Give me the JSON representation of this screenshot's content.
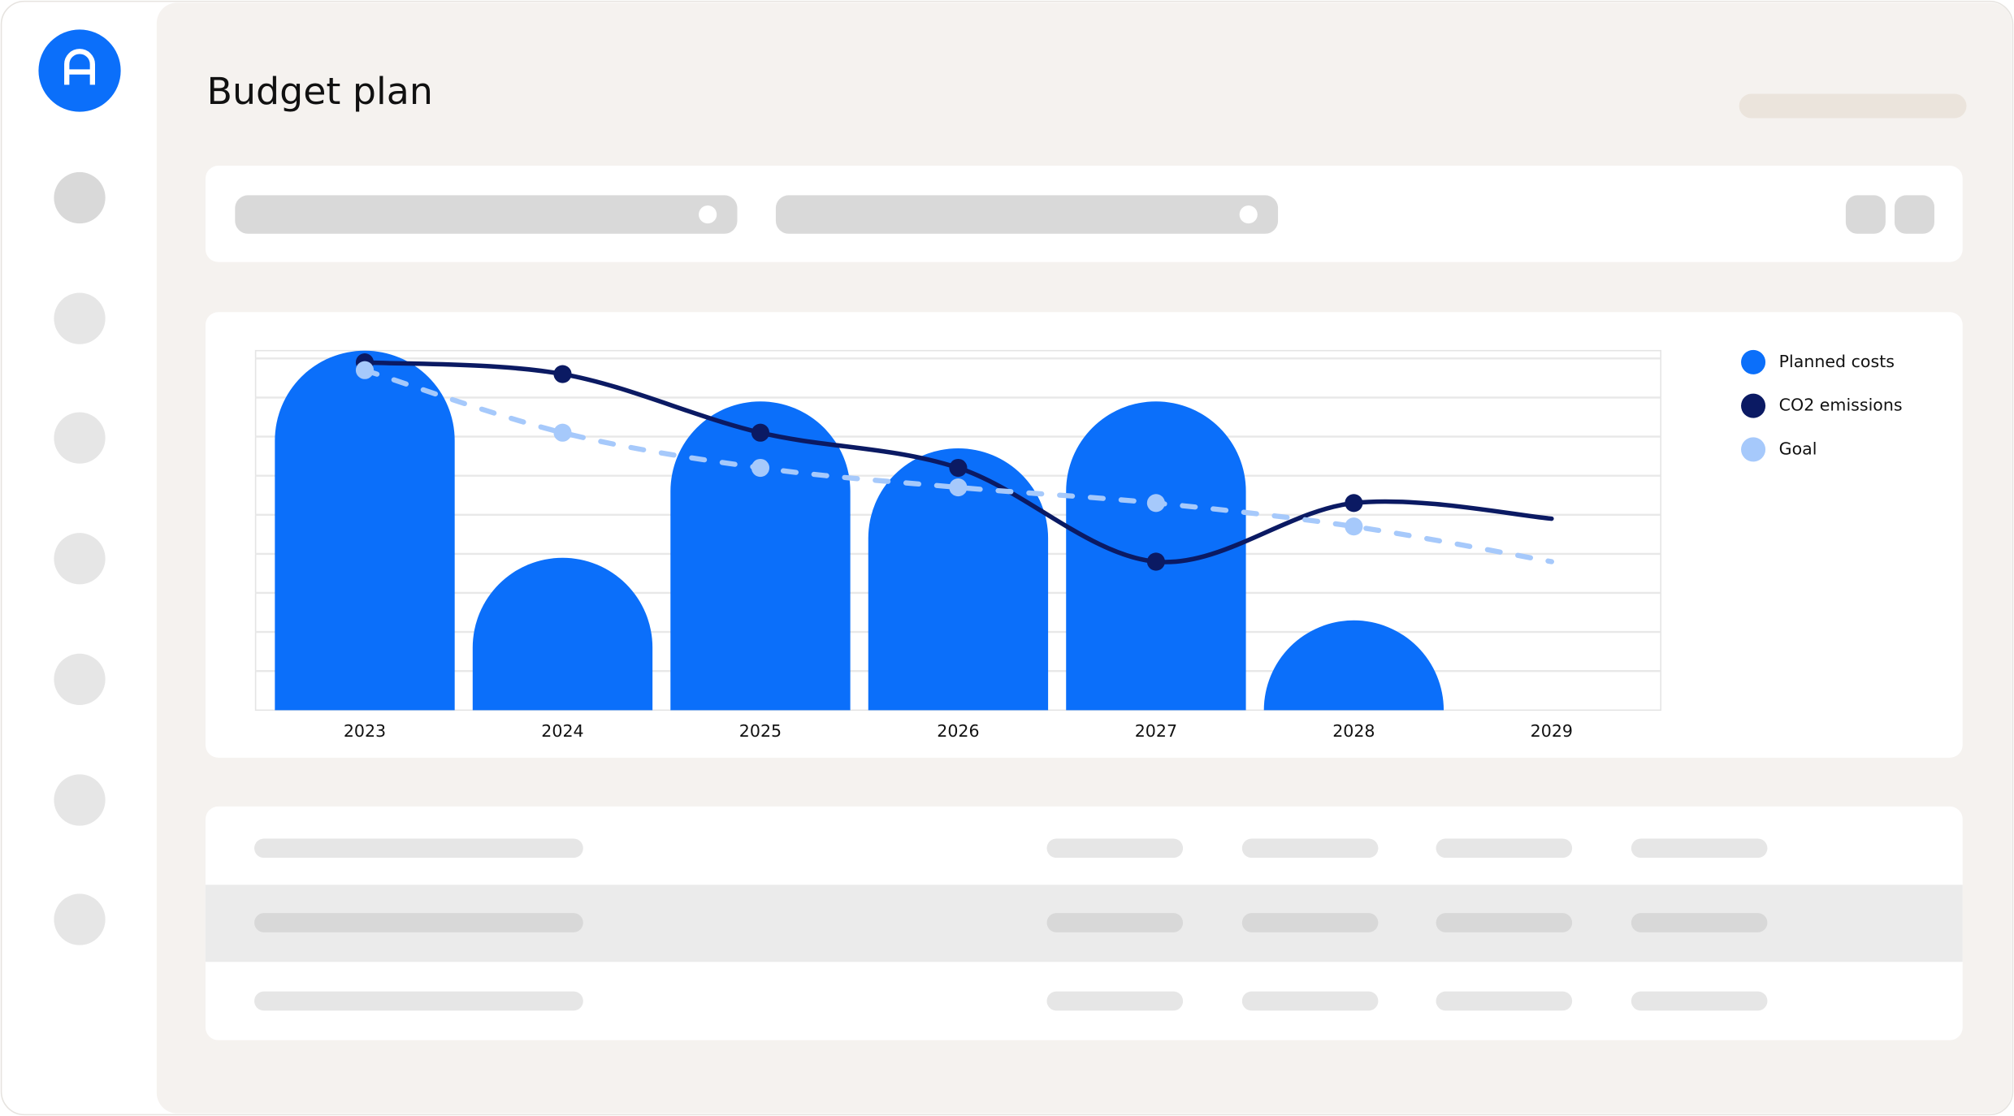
{
  "header": {
    "title": "Budget plan"
  },
  "chart_data": {
    "type": "bar",
    "categories": [
      "2023",
      "2024",
      "2025",
      "2026",
      "2027",
      "2028",
      "2029"
    ],
    "ylim": [
      0,
      9.2
    ],
    "yticks": [
      1,
      2,
      3,
      4,
      5,
      6,
      7,
      8,
      9
    ],
    "grid": true,
    "series": [
      {
        "name": "Planned costs",
        "color": "#0b6ffa",
        "type": "bar",
        "values": [
          9.2,
          3.9,
          7.9,
          6.7,
          7.9,
          2.3,
          null
        ]
      },
      {
        "name": "CO2 emissions",
        "color": "#0b1a63",
        "type": "line",
        "values": [
          8.9,
          8.6,
          7.1,
          6.2,
          3.8,
          5.3,
          4.9
        ]
      },
      {
        "name": "Goal",
        "color": "#a6c9fb",
        "type": "line",
        "dashed": true,
        "values": [
          8.7,
          7.1,
          6.2,
          5.7,
          5.3,
          4.7,
          3.8
        ]
      }
    ]
  }
}
